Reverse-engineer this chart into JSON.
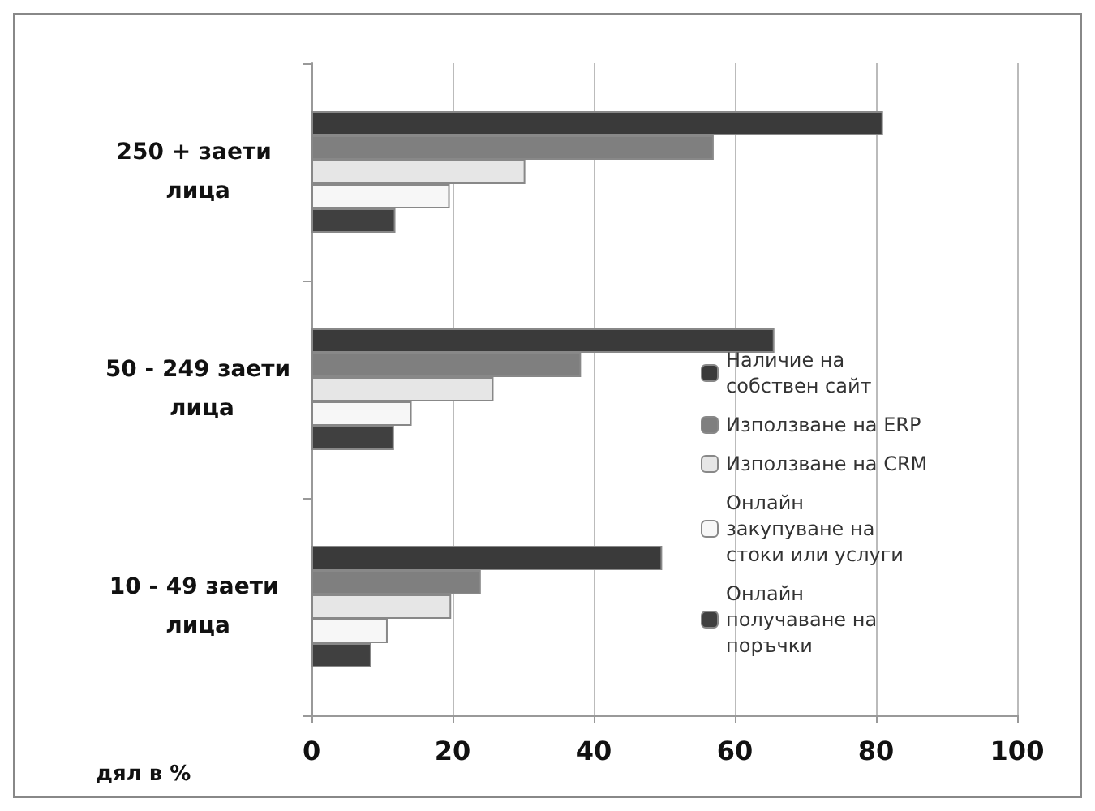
{
  "chart_data": {
    "type": "bar",
    "orientation": "horizontal",
    "xlabel": "дял в %",
    "categories": [
      "250 + заети лица",
      "50 - 249 заети лица",
      "10 - 49 заети лица"
    ],
    "series": [
      {
        "name": "Наличие на собствен сайт",
        "color": "#3a3a3a",
        "values": [
          81,
          65.6,
          49.7
        ]
      },
      {
        "name": "Използване на ERP",
        "color": "#7f7f7f",
        "values": [
          57,
          38.2,
          24
        ]
      },
      {
        "name": "Използване на CRM",
        "color": "#e6e6e6",
        "values": [
          30.3,
          25.8,
          19.8
        ]
      },
      {
        "name": "Онлайн закупуване на стоки или услуги",
        "color": "#f7f7f7",
        "values": [
          19.6,
          14.2,
          10.8
        ]
      },
      {
        "name": "Онлайн получаване на поръчки",
        "color": "#404040",
        "values": [
          11.9,
          11.7,
          8.5
        ]
      }
    ],
    "xlim": [
      0,
      100
    ],
    "xticks": [
      0,
      20,
      40,
      60,
      80,
      100
    ],
    "grid": "x",
    "legend": "right"
  }
}
